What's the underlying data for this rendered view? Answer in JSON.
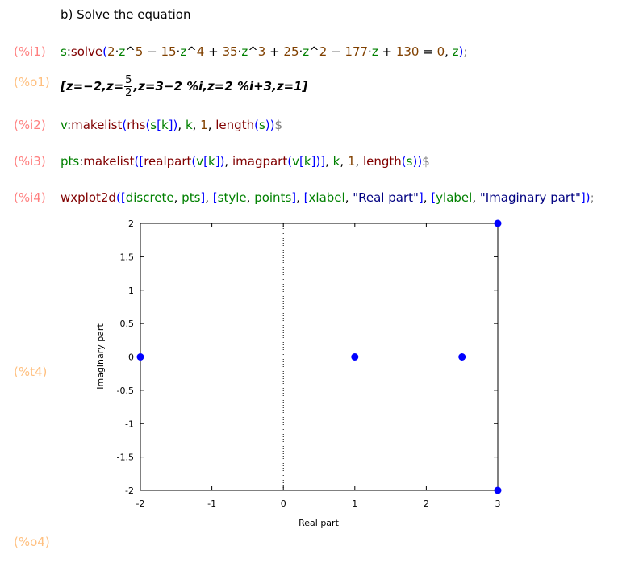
{
  "heading": "b) Solve the equation",
  "cells": {
    "i1": {
      "label": "(%i1)",
      "tokens": [
        {
          "t": "s",
          "c": "v"
        },
        {
          "t": ":",
          "c": "op"
        },
        {
          "t": "solve",
          "c": "f"
        },
        {
          "t": "(",
          "c": "p"
        },
        {
          "t": "2",
          "c": "n"
        },
        {
          "t": "·",
          "c": "op"
        },
        {
          "t": "z",
          "c": "v"
        },
        {
          "t": "^",
          "c": "op"
        },
        {
          "t": "5",
          "c": "n"
        },
        {
          "t": " − ",
          "c": "op"
        },
        {
          "t": "15",
          "c": "n"
        },
        {
          "t": "·",
          "c": "op"
        },
        {
          "t": "z",
          "c": "v"
        },
        {
          "t": "^",
          "c": "op"
        },
        {
          "t": "4",
          "c": "n"
        },
        {
          "t": " + ",
          "c": "op"
        },
        {
          "t": "35",
          "c": "n"
        },
        {
          "t": "·",
          "c": "op"
        },
        {
          "t": "z",
          "c": "v"
        },
        {
          "t": "^",
          "c": "op"
        },
        {
          "t": "3",
          "c": "n"
        },
        {
          "t": " + ",
          "c": "op"
        },
        {
          "t": "25",
          "c": "n"
        },
        {
          "t": "·",
          "c": "op"
        },
        {
          "t": "z",
          "c": "v"
        },
        {
          "t": "^",
          "c": "op"
        },
        {
          "t": "2",
          "c": "n"
        },
        {
          "t": " − ",
          "c": "op"
        },
        {
          "t": "177",
          "c": "n"
        },
        {
          "t": "·",
          "c": "op"
        },
        {
          "t": "z",
          "c": "v"
        },
        {
          "t": " + ",
          "c": "op"
        },
        {
          "t": "130",
          "c": "n"
        },
        {
          "t": " = ",
          "c": "op"
        },
        {
          "t": "0",
          "c": "n"
        },
        {
          "t": ", ",
          "c": "op"
        },
        {
          "t": "z",
          "c": "v"
        },
        {
          "t": ")",
          "c": "p"
        },
        {
          "t": ";",
          "c": "term"
        }
      ]
    },
    "o1": {
      "label": "(%o1)",
      "part1": "[z=−2,z=",
      "frac_num": "5",
      "frac_den": "2",
      "part2": ",z=3−2 %i,z=2 %i+3,z=1]"
    },
    "i2": {
      "label": "(%i2)",
      "tokens": [
        {
          "t": "v",
          "c": "v"
        },
        {
          "t": ":",
          "c": "op"
        },
        {
          "t": "makelist",
          "c": "f"
        },
        {
          "t": "(",
          "c": "p"
        },
        {
          "t": "rhs",
          "c": "f"
        },
        {
          "t": "(",
          "c": "p"
        },
        {
          "t": "s",
          "c": "v"
        },
        {
          "t": "[",
          "c": "p"
        },
        {
          "t": "k",
          "c": "v"
        },
        {
          "t": "]",
          "c": "p"
        },
        {
          "t": ")",
          "c": "p"
        },
        {
          "t": ", ",
          "c": "op"
        },
        {
          "t": "k",
          "c": "v"
        },
        {
          "t": ", ",
          "c": "op"
        },
        {
          "t": "1",
          "c": "n"
        },
        {
          "t": ", ",
          "c": "op"
        },
        {
          "t": "length",
          "c": "f"
        },
        {
          "t": "(",
          "c": "p"
        },
        {
          "t": "s",
          "c": "v"
        },
        {
          "t": ")",
          "c": "p"
        },
        {
          "t": ")",
          "c": "p"
        },
        {
          "t": "$",
          "c": "term"
        }
      ]
    },
    "i3": {
      "label": "(%i3)",
      "tokens": [
        {
          "t": "pts",
          "c": "v"
        },
        {
          "t": ":",
          "c": "op"
        },
        {
          "t": "makelist",
          "c": "f"
        },
        {
          "t": "(",
          "c": "p"
        },
        {
          "t": "[",
          "c": "p"
        },
        {
          "t": "realpart",
          "c": "f"
        },
        {
          "t": "(",
          "c": "p"
        },
        {
          "t": "v",
          "c": "v"
        },
        {
          "t": "[",
          "c": "p"
        },
        {
          "t": "k",
          "c": "v"
        },
        {
          "t": "]",
          "c": "p"
        },
        {
          "t": ")",
          "c": "p"
        },
        {
          "t": ", ",
          "c": "op"
        },
        {
          "t": "imagpart",
          "c": "f"
        },
        {
          "t": "(",
          "c": "p"
        },
        {
          "t": "v",
          "c": "v"
        },
        {
          "t": "[",
          "c": "p"
        },
        {
          "t": "k",
          "c": "v"
        },
        {
          "t": "]",
          "c": "p"
        },
        {
          "t": ")",
          "c": "p"
        },
        {
          "t": "]",
          "c": "p"
        },
        {
          "t": ", ",
          "c": "op"
        },
        {
          "t": "k",
          "c": "v"
        },
        {
          "t": ", ",
          "c": "op"
        },
        {
          "t": "1",
          "c": "n"
        },
        {
          "t": ", ",
          "c": "op"
        },
        {
          "t": "length",
          "c": "f"
        },
        {
          "t": "(",
          "c": "p"
        },
        {
          "t": "s",
          "c": "v"
        },
        {
          "t": ")",
          "c": "p"
        },
        {
          "t": ")",
          "c": "p"
        },
        {
          "t": "$",
          "c": "term"
        }
      ]
    },
    "i4": {
      "label": "(%i4)",
      "tokens": [
        {
          "t": "wxplot2d",
          "c": "f"
        },
        {
          "t": "(",
          "c": "p"
        },
        {
          "t": "[",
          "c": "p"
        },
        {
          "t": "discrete",
          "c": "v"
        },
        {
          "t": ", ",
          "c": "op"
        },
        {
          "t": "pts",
          "c": "v"
        },
        {
          "t": "]",
          "c": "p"
        },
        {
          "t": ", ",
          "c": "op"
        },
        {
          "t": "[",
          "c": "p"
        },
        {
          "t": "style",
          "c": "v"
        },
        {
          "t": ", ",
          "c": "op"
        },
        {
          "t": "points",
          "c": "v"
        },
        {
          "t": "]",
          "c": "p"
        },
        {
          "t": ", ",
          "c": "op"
        },
        {
          "t": "[",
          "c": "p"
        },
        {
          "t": "xlabel",
          "c": "v"
        },
        {
          "t": ", ",
          "c": "op"
        },
        {
          "t": "\"Real part\"",
          "c": "s"
        },
        {
          "t": "]",
          "c": "p"
        },
        {
          "t": ", ",
          "c": "op"
        },
        {
          "t": "[",
          "c": "p"
        },
        {
          "t": "ylabel",
          "c": "v"
        },
        {
          "t": ", ",
          "c": "op"
        },
        {
          "t": "\"Imaginary part\"",
          "c": "s"
        },
        {
          "t": "]",
          "c": "p"
        },
        {
          "t": ")",
          "c": "p"
        },
        {
          "t": ";",
          "c": "term"
        }
      ]
    },
    "t4": {
      "label": "(%t4)"
    },
    "o4": {
      "label": "(%o4)"
    }
  },
  "colors": {
    "input_label": "#ff8080",
    "output_label": "#ffc080",
    "point": "#0000ff"
  },
  "chart_data": {
    "type": "scatter",
    "xlabel": "Real part",
    "ylabel": "Imaginary part",
    "xlim": [
      -2,
      3
    ],
    "ylim": [
      -2,
      2
    ],
    "x_ticks": [
      "-2",
      "-1",
      "0",
      "1",
      "2",
      "3"
    ],
    "y_ticks": [
      "2",
      "1.5",
      "1",
      "0.5",
      "0",
      "-0.5",
      "-1",
      "-1.5",
      "-2"
    ],
    "zero_axes": "dotted",
    "points": [
      {
        "x": -2,
        "y": 0
      },
      {
        "x": 2.5,
        "y": 0
      },
      {
        "x": 3,
        "y": -2
      },
      {
        "x": 3,
        "y": 2
      },
      {
        "x": 1,
        "y": 0
      }
    ]
  }
}
